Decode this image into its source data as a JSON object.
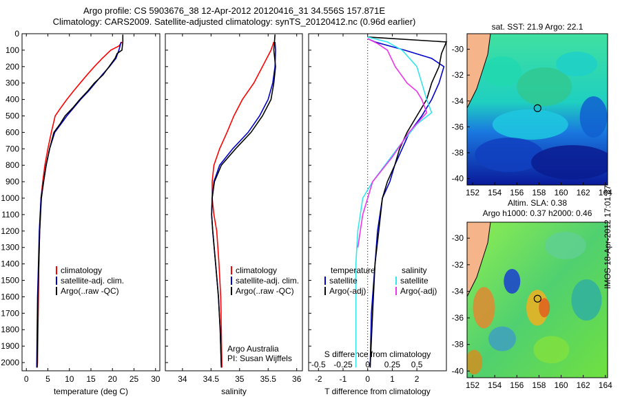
{
  "title_line1": "Argo profile: CS 5903676_38 12-Apr-2012 20120416_31 34.556S 157.871E",
  "title_line2": "Climatology: CARS2009. Satellite-adjusted climatology: synTS_20120412.nc (0.96d earlier)",
  "colors": {
    "climatology": "#ff0000",
    "satellite": "#0000cc",
    "argo": "#000000",
    "salinity_sat": "#33e6ee",
    "salinity_argo": "#ee33ee"
  },
  "chart_data": [
    {
      "type": "line",
      "id": "temperature",
      "xlabel": "temperature (deg C)",
      "ylabel": "",
      "xlim": [
        -1,
        31
      ],
      "ylim": [
        2050,
        0
      ],
      "xticks": [
        0,
        5,
        10,
        15,
        20,
        25,
        30
      ],
      "yticks": [
        0,
        100,
        200,
        300,
        400,
        500,
        600,
        700,
        800,
        900,
        1000,
        1100,
        1200,
        1300,
        1400,
        1500,
        1600,
        1700,
        1800,
        1900,
        2000
      ],
      "legend": [
        "climatology",
        "satellite-adj. clim.",
        "Argo(..raw -QC)"
      ],
      "series": [
        {
          "name": "climatology",
          "x": [
            22.2,
            21.5,
            19.6,
            17.6,
            15.8,
            14.1,
            12.5,
            10.9,
            9.4,
            8.0,
            6.7,
            5.8,
            5.0,
            4.3,
            3.8,
            3.4,
            3.1,
            2.9,
            2.8,
            2.7,
            2.6,
            2.5
          ],
          "y": [
            50,
            75,
            100,
            150,
            200,
            250,
            300,
            350,
            400,
            450,
            500,
            600,
            700,
            800,
            900,
            1000,
            1200,
            1400,
            1600,
            1800,
            2000,
            2030
          ]
        },
        {
          "name": "satellite-adj. clim.",
          "x": [
            22.0,
            21.5,
            20.8,
            19.3,
            17.6,
            16.0,
            14.4,
            12.6,
            11.0,
            9.4,
            8.0,
            6.6,
            5.4,
            4.6,
            4.0,
            3.4,
            3.0,
            2.8,
            2.6,
            2.5,
            2.4
          ],
          "y": [
            50,
            100,
            150,
            200,
            250,
            300,
            350,
            400,
            450,
            500,
            550,
            600,
            700,
            800,
            900,
            1000,
            1200,
            1400,
            1600,
            1800,
            2030
          ]
        },
        {
          "name": "Argo(..raw -QC)",
          "x": [
            22.4,
            22.4,
            22.2,
            21.1,
            20.6,
            19.2,
            17.8,
            15.8,
            14.2,
            12.4,
            10.8,
            9.0,
            7.8,
            6.4,
            5.4,
            4.6,
            4.0,
            3.5,
            3.1,
            2.9,
            2.7,
            2.6,
            2.5
          ],
          "y": [
            5,
            50,
            100,
            120,
            150,
            200,
            250,
            300,
            350,
            400,
            450,
            500,
            550,
            600,
            700,
            800,
            900,
            1000,
            1200,
            1400,
            1600,
            1800,
            2030
          ]
        }
      ]
    },
    {
      "type": "line",
      "id": "salinity",
      "xlabel": "salinity",
      "ylabel": "",
      "xlim": [
        33.7,
        36.1
      ],
      "ylim": [
        2050,
        0
      ],
      "xticks": [
        34,
        34.5,
        35,
        35.5,
        36
      ],
      "legend": [
        "climatology",
        "satellite-adj. clim.",
        "Argo(..raw -QC)"
      ],
      "annotation": [
        "Argo Australia",
        "PI: Susan Wijffels"
      ],
      "series": [
        {
          "name": "climatology",
          "x": [
            35.6,
            35.55,
            35.4,
            35.25,
            35.05,
            34.9,
            34.78,
            34.65,
            34.55,
            34.52,
            34.52,
            34.55,
            34.6,
            34.64,
            34.67,
            34.68,
            34.69
          ],
          "y": [
            50,
            100,
            200,
            300,
            400,
            500,
            600,
            700,
            800,
            900,
            1000,
            1100,
            1200,
            1400,
            1600,
            1800,
            2030
          ]
        },
        {
          "name": "satellite-adj. clim.",
          "x": [
            35.62,
            35.63,
            35.62,
            35.58,
            35.5,
            35.35,
            35.15,
            34.88,
            34.65,
            34.55,
            34.52,
            34.51,
            34.53,
            34.58,
            34.63,
            34.66,
            34.68
          ],
          "y": [
            50,
            100,
            200,
            300,
            400,
            500,
            600,
            700,
            800,
            900,
            1000,
            1100,
            1200,
            1400,
            1600,
            1800,
            2030
          ]
        },
        {
          "name": "Argo(..raw -QC)",
          "x": [
            35.62,
            35.6,
            35.63,
            35.6,
            35.55,
            35.4,
            35.2,
            34.93,
            34.68,
            34.56,
            34.52,
            34.51,
            34.53,
            34.58,
            34.63,
            34.66,
            34.68
          ],
          "y": [
            5,
            100,
            200,
            300,
            400,
            500,
            600,
            700,
            800,
            900,
            1000,
            1100,
            1200,
            1400,
            1600,
            1800,
            2030
          ]
        }
      ]
    },
    {
      "type": "line",
      "id": "differences",
      "xlabel": "T difference from climatology",
      "xlabel_top": "S difference from climatology",
      "xlim": [
        -2.4,
        3.2
      ],
      "ylim": [
        2050,
        0
      ],
      "xticks": [
        -2,
        -1,
        0,
        1,
        2
      ],
      "xticks_salinity": [
        -0.5,
        -0.25,
        0,
        0.25,
        0.5
      ],
      "legend_temperature": [
        "temperature",
        "satellite",
        "Argo(-adj)"
      ],
      "legend_salinity": [
        "salinity",
        "satellite",
        "Argo(-adj)"
      ],
      "series": [
        {
          "name": "temperature satellite",
          "x": [
            0.0,
            0.3,
            1.5,
            2.6,
            3.1,
            2.9,
            2.6,
            2.2,
            1.7,
            1.4,
            1.1,
            0.9,
            0.6,
            0.4,
            0.3,
            0.15,
            0.1
          ],
          "y": [
            30,
            50,
            100,
            150,
            200,
            300,
            400,
            500,
            600,
            700,
            800,
            900,
            1000,
            1200,
            1400,
            1700,
            2030
          ]
        },
        {
          "name": "temperature Argo(-adj)",
          "x": [
            0.0,
            3.2,
            3.0,
            2.9,
            2.6,
            2.4,
            2.0,
            1.6,
            1.3,
            1.1,
            0.8,
            0.6,
            0.45,
            0.3,
            0.2,
            0.1
          ],
          "y": [
            20,
            50,
            120,
            200,
            300,
            400,
            500,
            600,
            700,
            800,
            900,
            1000,
            1200,
            1400,
            1700,
            2030
          ]
        },
        {
          "name": "salinity satellite",
          "x": [
            0.0,
            0.2,
            0.35,
            0.5,
            0.55,
            0.6,
            0.65,
            0.5,
            0.3,
            0.05,
            -0.05,
            -0.1,
            -0.12,
            -0.12,
            -0.12
          ],
          "y": [
            20,
            50,
            100,
            200,
            300,
            400,
            480,
            550,
            700,
            900,
            1000,
            1200,
            1400,
            1700,
            2030
          ]
        },
        {
          "name": "salinity Argo(-adj)",
          "x": [
            0.0,
            0.1,
            0.2,
            0.28,
            0.4,
            0.5,
            0.55,
            0.6,
            0.42,
            0.25,
            0.05,
            -0.05,
            -0.1
          ],
          "y": [
            30,
            60,
            100,
            200,
            300,
            350,
            400,
            480,
            600,
            750,
            900,
            1100,
            1300
          ]
        }
      ]
    },
    {
      "type": "heatmap",
      "id": "sst_map",
      "title": "sat. SST: 21.9  Argo: 22.1",
      "xticks": [
        152,
        154,
        156,
        158,
        160,
        162,
        164
      ],
      "yticks": [
        -30,
        -32,
        -34,
        -36,
        -38,
        -40
      ],
      "marker": {
        "lon": 157.871,
        "lat": -34.556
      }
    },
    {
      "type": "heatmap",
      "id": "sla_map",
      "title_line1": "Altim. SLA: 0.38",
      "title_line2": "Argo h1000: 0.37 h2000: 0.46",
      "xticks": [
        152,
        154,
        156,
        158,
        160,
        162,
        164
      ],
      "yticks": [
        -30,
        -32,
        -34,
        -36,
        -38,
        -40
      ],
      "marker": {
        "lon": 157.871,
        "lat": -34.556
      }
    }
  ],
  "side_text": "IMOS 18-Apr-2012 17:01:37"
}
